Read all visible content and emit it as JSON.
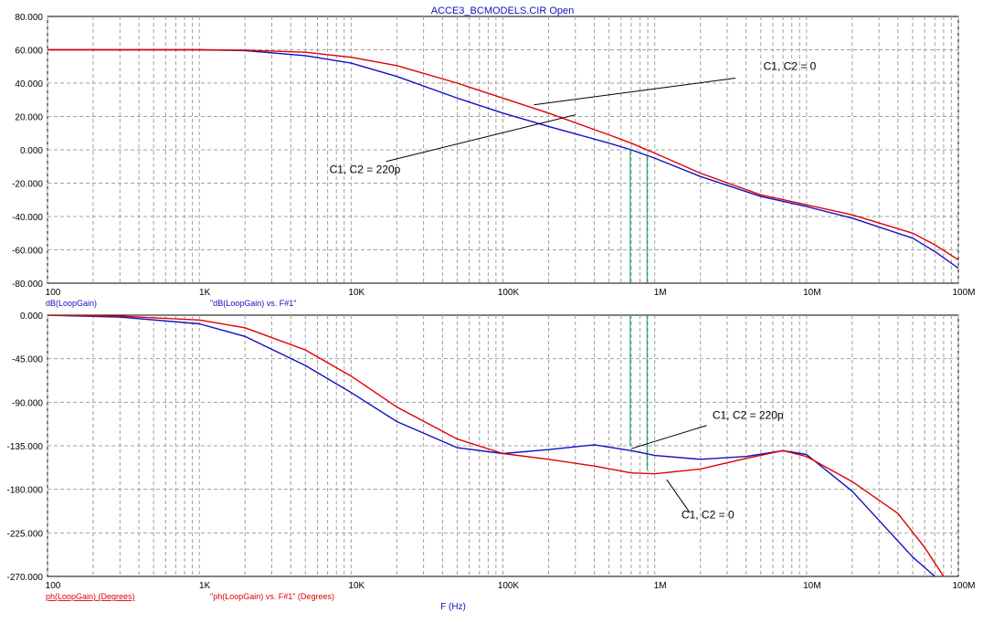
{
  "window_title": "ACCE3_BCMODELS.CIR Open",
  "x_axis_title": "F (Hz)",
  "colors": {
    "blue": "#1010c0",
    "red": "#e00000",
    "green": "#00a040",
    "grid": "#a0a0a0",
    "axis_text": "#000000"
  },
  "chart_data": [
    {
      "type": "line",
      "name": "magnitude",
      "x_scale": "log",
      "xlim": [
        100,
        100000000
      ],
      "ylim": [
        -80,
        80
      ],
      "y_ticks": [
        80,
        60,
        40,
        20,
        0,
        -20,
        -40,
        -60,
        -80
      ],
      "y_tick_labels": [
        "80.000",
        "60.000",
        "40.000",
        "20.000",
        "0.000",
        "-20.000",
        "-40.000",
        "-60.000",
        "-80.000"
      ],
      "x_ticks": [
        100,
        1000,
        10000,
        100000,
        1000000,
        10000000,
        100000000
      ],
      "x_tick_labels": [
        "100",
        "1K",
        "10K",
        "100K",
        "1M",
        "10M",
        "100M"
      ],
      "ylabel": "dB(LoopGain)",
      "legend_text": "\"dB(LoopGain) vs. F#1\"",
      "grid": true,
      "series": [
        {
          "color": "blue",
          "x": [
            100,
            1000,
            2000,
            5000,
            10000,
            20000,
            50000,
            100000,
            200000,
            500000,
            700000,
            1000000,
            2000000,
            5000000,
            10000000,
            20000000,
            50000000,
            70000000,
            100000000
          ],
          "y": [
            60,
            60,
            59.5,
            56.5,
            52,
            44,
            31,
            22,
            14,
            4,
            0,
            -5,
            -16,
            -28,
            -34,
            -41,
            -53,
            -61,
            -71
          ]
        },
        {
          "color": "red",
          "x": [
            100,
            1000,
            2000,
            5000,
            10000,
            20000,
            50000,
            100000,
            200000,
            500000,
            700000,
            1000000,
            2000000,
            5000000,
            10000000,
            20000000,
            50000000,
            70000000,
            100000000
          ],
          "y": [
            60,
            60,
            59.8,
            58.5,
            55.5,
            50.5,
            40,
            31,
            22,
            9,
            4,
            -2,
            -14,
            -27,
            -33,
            -39,
            -50,
            -57,
            -66
          ]
        }
      ],
      "markers": [
        {
          "x": 690000,
          "y_from": 0,
          "y_to": -80
        },
        {
          "x": 890000,
          "y_from": -3,
          "y_to": -80
        }
      ],
      "annotations": [
        {
          "text": "C1, C2 = 0",
          "x": 5200000,
          "y": 48,
          "pointer_from_x": 3400000,
          "pointer_from_y": 43,
          "pointer_to_x": 160000,
          "pointer_to_y": 27
        },
        {
          "text": "C1, C2 = 220p",
          "x": 7200,
          "y": -14,
          "pointer_from_x": 17000,
          "pointer_from_y": -7,
          "pointer_to_x": 300000,
          "pointer_to_y": 21
        }
      ]
    },
    {
      "type": "line",
      "name": "phase",
      "x_scale": "log",
      "xlim": [
        100,
        100000000
      ],
      "ylim": [
        -270,
        0
      ],
      "y_ticks": [
        0,
        -45,
        -90,
        -135,
        -180,
        -225,
        -270
      ],
      "y_tick_labels": [
        "0.000",
        "-45.000",
        "-90.000",
        "-135.000",
        "-180.000",
        "-225.000",
        "-270.000"
      ],
      "x_ticks": [
        100,
        1000,
        10000,
        100000,
        1000000,
        10000000,
        100000000
      ],
      "x_tick_labels": [
        "100",
        "1K",
        "10K",
        "100K",
        "1M",
        "10M",
        "100M"
      ],
      "ylabel": "ph(LoopGain) (Degrees)",
      "legend_text": "\"ph(LoopGain) vs. F#1\" (Degrees)",
      "grid": true,
      "series": [
        {
          "color": "blue",
          "x": [
            100,
            300,
            1000,
            2000,
            5000,
            10000,
            20000,
            50000,
            100000,
            200000,
            400000,
            700000,
            1000000,
            2000000,
            4000000,
            7000000,
            10000000,
            20000000,
            50000000,
            70000000
          ],
          "y": [
            0,
            -2,
            -9,
            -22,
            -52,
            -80,
            -110,
            -137,
            -143,
            -139,
            -134,
            -140,
            -145,
            -149,
            -146,
            -140,
            -144,
            -182,
            -250,
            -270
          ]
        },
        {
          "color": "red",
          "x": [
            100,
            300,
            1000,
            2000,
            5000,
            10000,
            20000,
            50000,
            100000,
            200000,
            400000,
            700000,
            1000000,
            2000000,
            4000000,
            7000000,
            10000000,
            20000000,
            40000000,
            60000000,
            80000000
          ],
          "y": [
            0,
            -1,
            -5,
            -13,
            -36,
            -63,
            -95,
            -128,
            -143,
            -149,
            -156,
            -163,
            -164,
            -159,
            -148,
            -140,
            -146,
            -172,
            -205,
            -240,
            -270
          ]
        }
      ],
      "markers": [
        {
          "x": 690000,
          "y_from": 0,
          "y_to": -135
        },
        {
          "x": 890000,
          "y_from": 0,
          "y_to": -160
        }
      ],
      "annotations": [
        {
          "text": "C1, C2 = 220p",
          "x": 2400000,
          "y": -107,
          "pointer_from_x": 2200000,
          "pointer_from_y": -114,
          "pointer_to_x": 700000,
          "pointer_to_y": -138
        },
        {
          "text": "C1, C2 = 0",
          "x": 1500000,
          "y": -210,
          "pointer_from_x": 1700000,
          "pointer_from_y": -204,
          "pointer_to_x": 1200000,
          "pointer_to_y": -170
        }
      ]
    }
  ]
}
